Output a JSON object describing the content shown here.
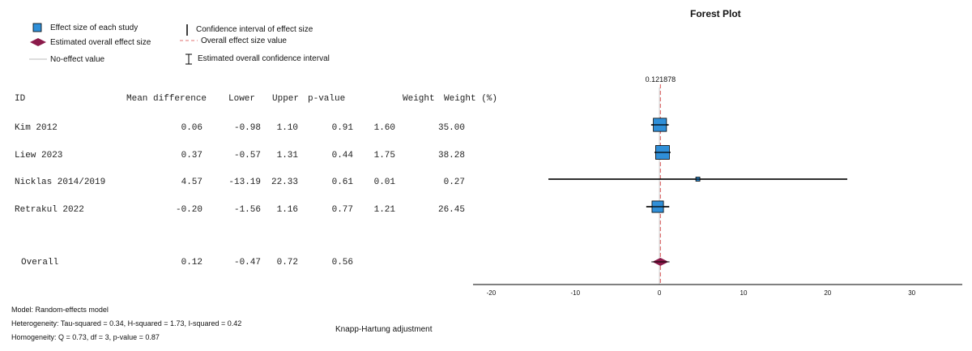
{
  "legend": {
    "effect_size": "Effect size of each study",
    "overall_effect": "Estimated overall effect size",
    "no_effect": "No-effect value",
    "ci": "Confidence interval of effect size",
    "overall_value": "Overall effect size value",
    "overall_ci": "Estimated overall confidence interval"
  },
  "table": {
    "headers": [
      "ID",
      "Mean difference",
      "Lower",
      "Upper",
      "p-value",
      "Weight",
      "Weight (%)"
    ],
    "rows": [
      [
        "Kim 2012",
        "0.06",
        "-0.98",
        "1.10",
        "0.91",
        "1.60",
        "35.00"
      ],
      [
        "Liew 2023",
        "0.37",
        "-0.57",
        "1.31",
        "0.44",
        "1.75",
        "38.28"
      ],
      [
        "Nicklas 2014/2019",
        "4.57",
        "-13.19",
        "22.33",
        "0.61",
        "0.01",
        "0.27"
      ],
      [
        "Retrakul 2022",
        "-0.20",
        "-1.56",
        "1.16",
        "0.77",
        "1.21",
        "26.45"
      ]
    ],
    "overall": [
      "Overall",
      "0.12",
      "-0.47",
      "0.72",
      "0.56"
    ]
  },
  "footer": {
    "model": "Model: Random-effects model",
    "heterogeneity": "Heterogeneity: Tau-squared = 0.34, H-squared = 1.73, I-squared = 0.42",
    "homogeneity": "Homogeneity: Q = 0.73, df = 3, p-value = 0.87",
    "adjustment": "Knapp-Hartung adjustment"
  },
  "chart_data": {
    "type": "forest",
    "title": "Forest Plot",
    "overall_label": "0.121878",
    "overall_value": 0.121878,
    "xlim": [
      -21,
      36
    ],
    "xticks": [
      -20,
      -10,
      0,
      10,
      20,
      30
    ],
    "no_effect_value": 0,
    "studies": [
      {
        "id": "Kim 2012",
        "estimate": 0.06,
        "lower": -0.98,
        "upper": 1.1,
        "weight_pct": 35.0
      },
      {
        "id": "Liew 2023",
        "estimate": 0.37,
        "lower": -0.57,
        "upper": 1.31,
        "weight_pct": 38.28
      },
      {
        "id": "Nicklas 2014/2019",
        "estimate": 4.57,
        "lower": -13.19,
        "upper": 22.33,
        "weight_pct": 0.27
      },
      {
        "id": "Retrakul 2022",
        "estimate": -0.2,
        "lower": -1.56,
        "upper": 1.16,
        "weight_pct": 26.45
      }
    ],
    "overall": {
      "estimate": 0.12,
      "lower": -0.47,
      "upper": 0.72
    },
    "colors": {
      "study_marker": "#2f8fd8",
      "overall_marker": "#8b1a4a",
      "reference_line": "#e07070",
      "axis": "#000000"
    }
  }
}
